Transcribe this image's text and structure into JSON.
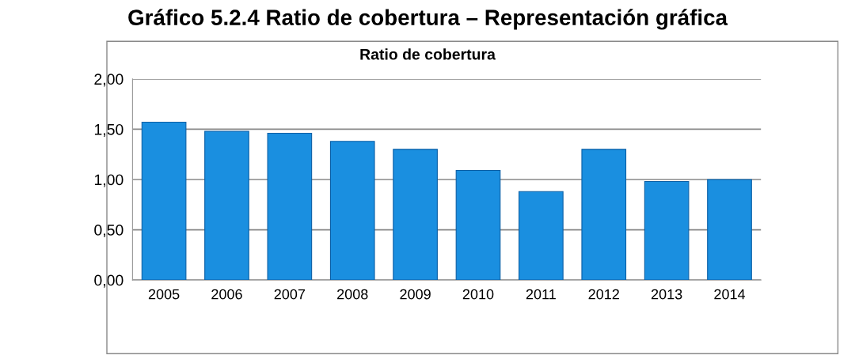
{
  "chart_data": {
    "type": "bar",
    "title": "Gráfico 5.2.4 Ratio de cobertura – Representación gráfica",
    "subtitle": "Ratio de cobertura",
    "categories": [
      "2005",
      "2006",
      "2007",
      "2008",
      "2009",
      "2010",
      "2011",
      "2012",
      "2013",
      "2014"
    ],
    "values": [
      1.57,
      1.48,
      1.46,
      1.38,
      1.3,
      1.09,
      0.88,
      1.3,
      0.98,
      1.0
    ],
    "color": "#1a8fe0",
    "ylim": [
      0,
      2
    ],
    "yticks": [
      {
        "value": 0,
        "label": "0,00"
      },
      {
        "value": 0.5,
        "label": "0,50"
      },
      {
        "value": 1,
        "label": "1,00"
      },
      {
        "value": 1.5,
        "label": "1,50"
      },
      {
        "value": 2,
        "label": "2,00"
      }
    ],
    "grid": "y"
  }
}
